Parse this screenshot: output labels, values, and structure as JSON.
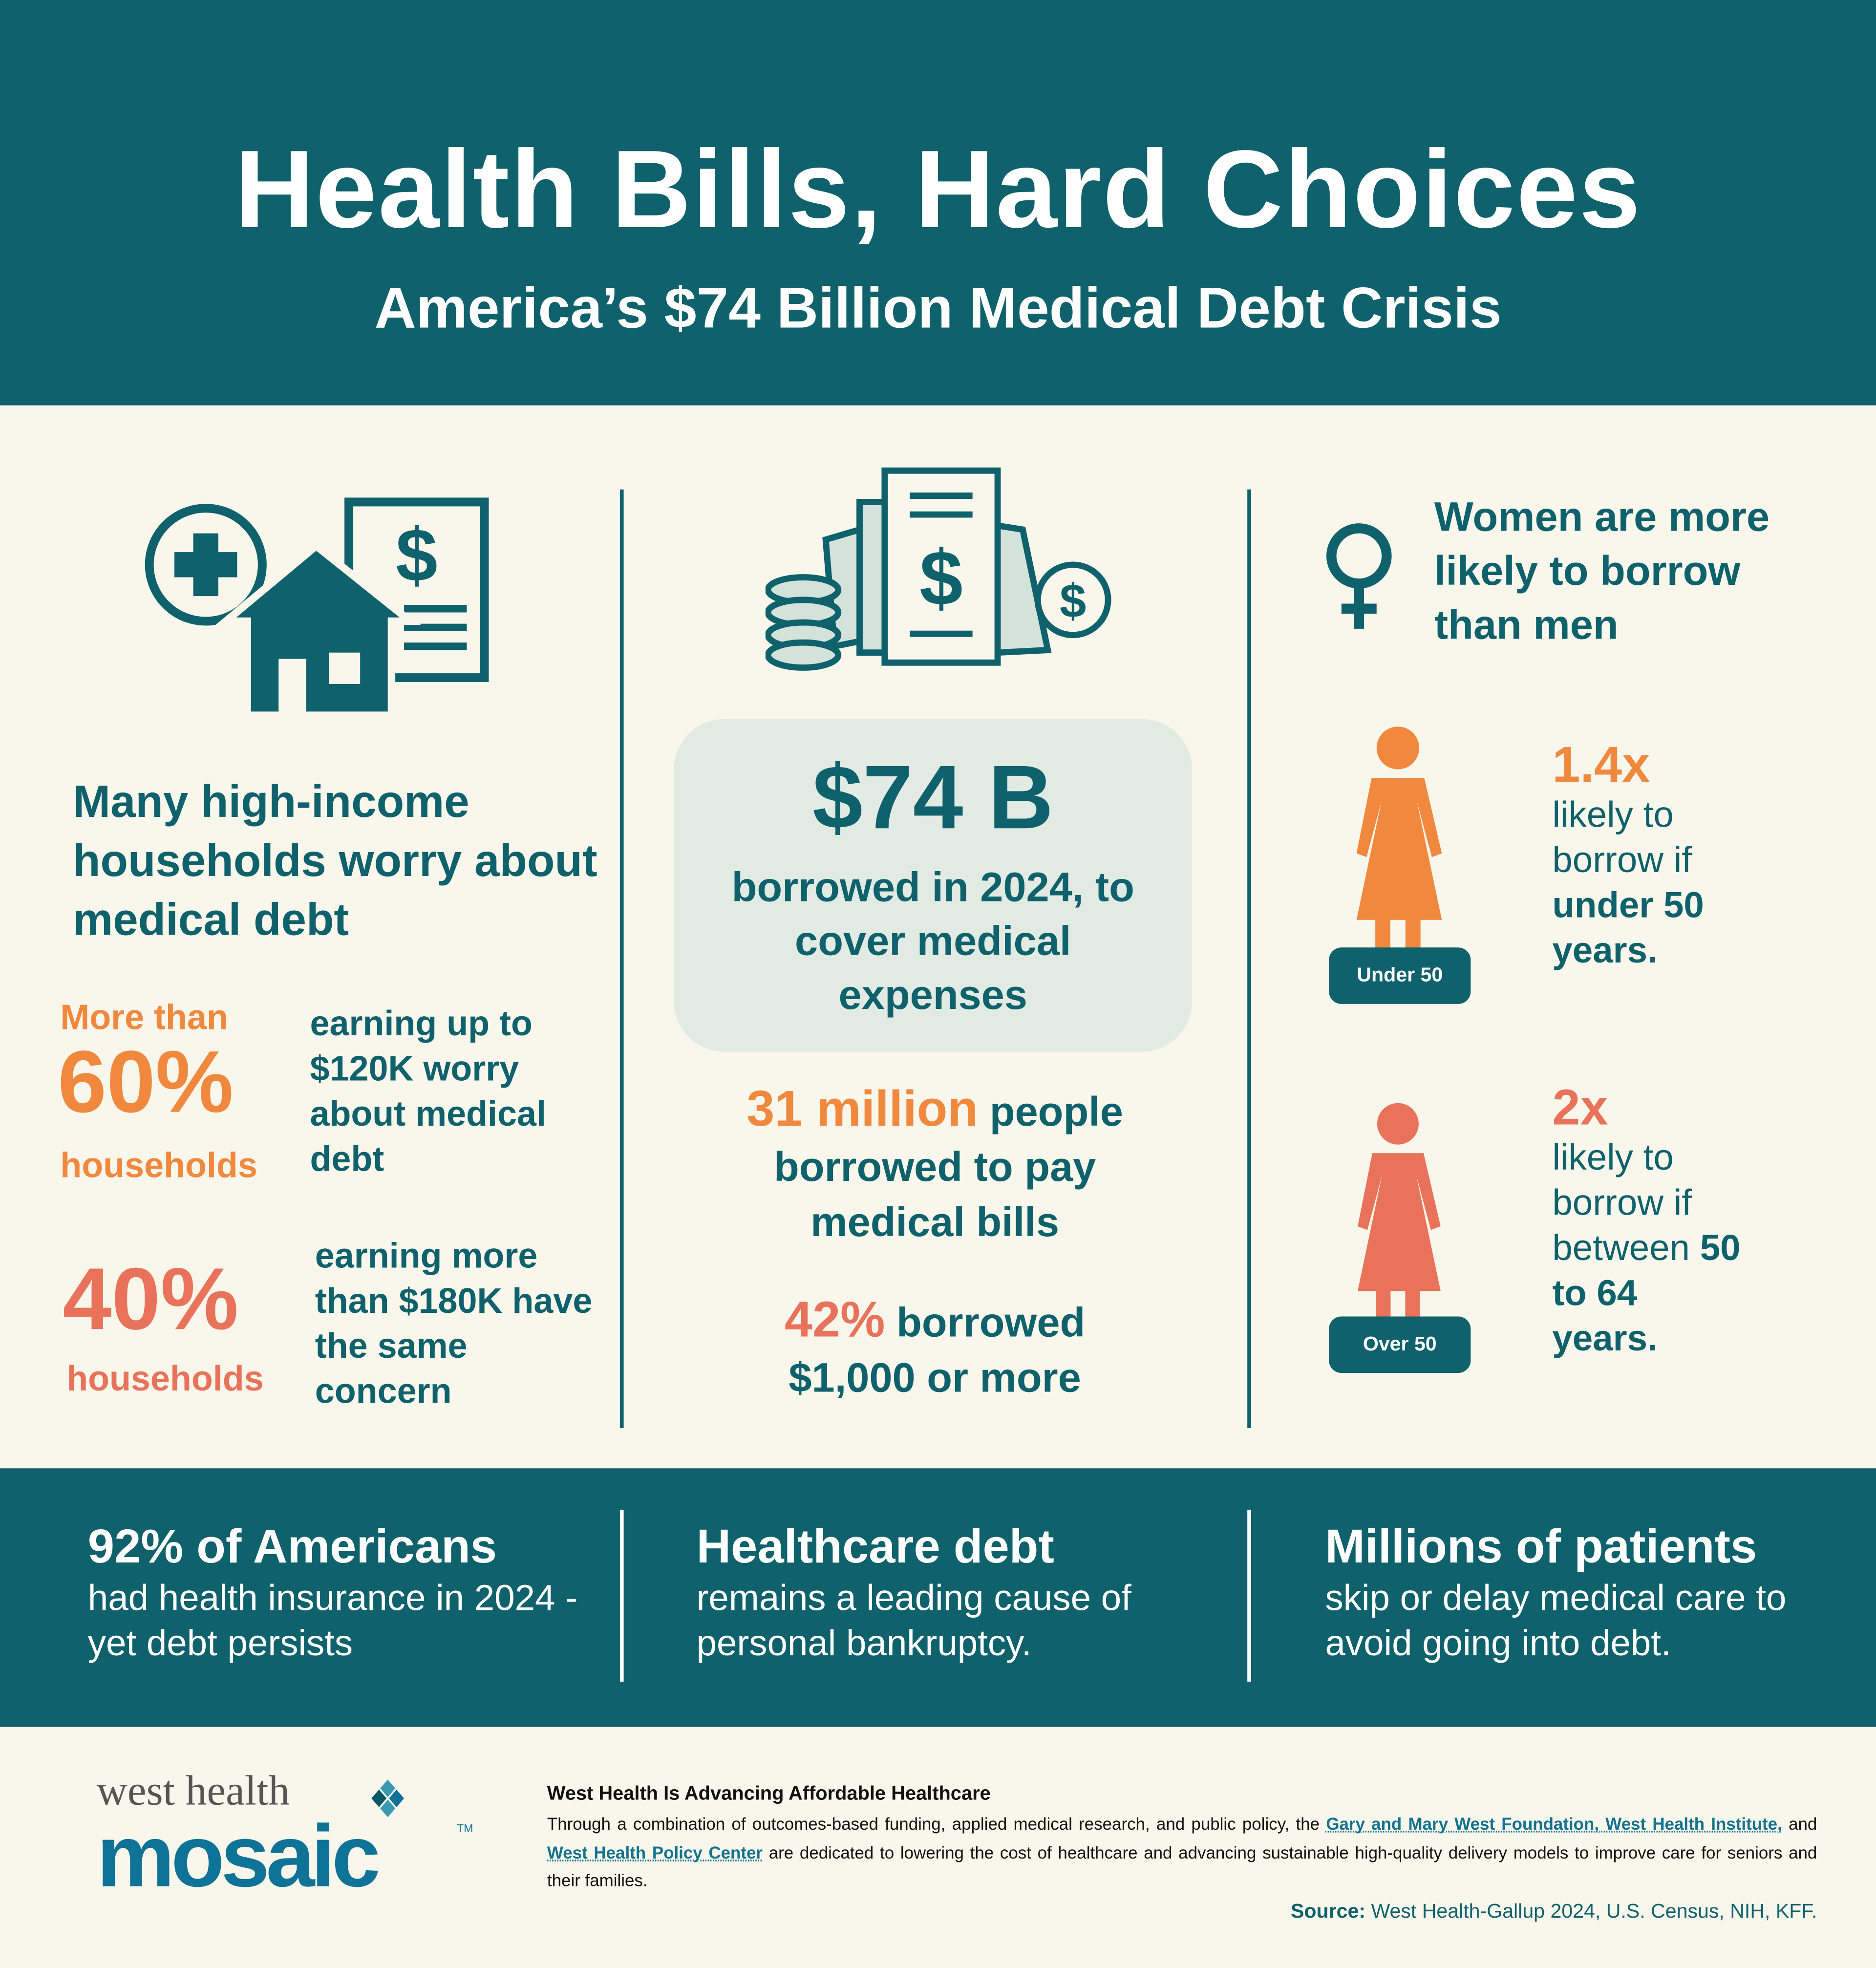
{
  "header": {
    "title": "Health Bills, Hard Choices",
    "subtitle": "America’s $74 Billion Medical Debt Crisis"
  },
  "left": {
    "heading": "Many high-income households worry about medical debt",
    "stat1": {
      "prefix": "More than",
      "value": "60%",
      "unit": "households",
      "desc": "earning up to $120K worry about medical debt"
    },
    "stat2": {
      "value": "40%",
      "unit": "households",
      "desc": "earning more than $180K have the same concern"
    }
  },
  "center": {
    "amount": "$74 B",
    "amount_desc": "borrowed in 2024, to cover medical expenses",
    "people_value": "31 million",
    "people_suffix": "people",
    "people_desc": "borrowed to pay medical bills",
    "pct_value": "42%",
    "pct_suffix": "borrowed",
    "pct_desc": "$1,000 or more"
  },
  "right": {
    "heading": "Women are more likely to borrow than men",
    "group1": {
      "label": "Under 50",
      "value": "1.4x",
      "text": "likely to borrow if",
      "bold": "under 50 years."
    },
    "group2": {
      "label": "Over 50",
      "value": "2x",
      "text": "likely to borrow if between",
      "bold": "50 to 64 years."
    }
  },
  "band": [
    {
      "heading": "92% of Americans",
      "text": "had health insurance in 2024 - yet debt persists"
    },
    {
      "heading": "Healthcare debt",
      "text": "remains a leading cause of personal bankruptcy."
    },
    {
      "heading": "Millions of patients",
      "text": "skip or delay medical care to avoid going into debt."
    }
  ],
  "footer": {
    "logo_top": "west health",
    "logo_bottom": "mosaic",
    "logo_tm": "TM",
    "heading": "West Health Is Advancing Affordable Healthcare",
    "p1": "Through a combination of outcomes-based funding, applied medical research, and public policy, the ",
    "link1": "Gary and Mary West Foundation, West Health Institute,",
    "p2": " and ",
    "link2": "West Health Policy Center",
    "p3": " are dedicated to lowering the cost of healthcare and advancing sustainable high-quality delivery models to improve care for seniors and their families.",
    "source_label": "Source:",
    "source_text": " West Health-Gallup 2024, U.S. Census, NIH, KFF."
  },
  "colors": {
    "teal": "#0f616b",
    "orange": "#f0883e",
    "coral": "#e8735a",
    "box": "#e2ebe3",
    "background": "#f9f7ec"
  }
}
